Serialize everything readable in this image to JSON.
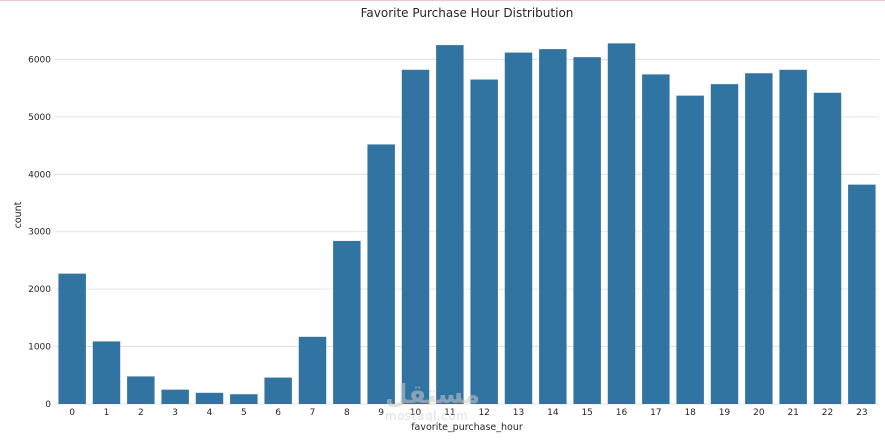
{
  "chart_data": {
    "type": "bar",
    "title": "Favorite Purchase Hour Distribution",
    "xlabel": "favorite_purchase_hour",
    "ylabel": "count",
    "categories": [
      "0",
      "1",
      "2",
      "3",
      "4",
      "5",
      "6",
      "7",
      "8",
      "9",
      "10",
      "11",
      "12",
      "13",
      "14",
      "15",
      "16",
      "17",
      "18",
      "19",
      "20",
      "21",
      "22",
      "23"
    ],
    "values": [
      2270,
      1090,
      480,
      250,
      195,
      170,
      460,
      1170,
      2840,
      4520,
      5820,
      6250,
      5650,
      6120,
      6180,
      6040,
      6280,
      5740,
      5370,
      5570,
      5760,
      5820,
      5420,
      3820
    ],
    "ylim": [
      0,
      6600
    ],
    "yticks": [
      0,
      1000,
      2000,
      3000,
      4000,
      5000,
      6000
    ],
    "grid": true,
    "bar_color": "#3274a1"
  },
  "watermark": {
    "arabic": "مستقل",
    "latin": "mostaql.com"
  }
}
